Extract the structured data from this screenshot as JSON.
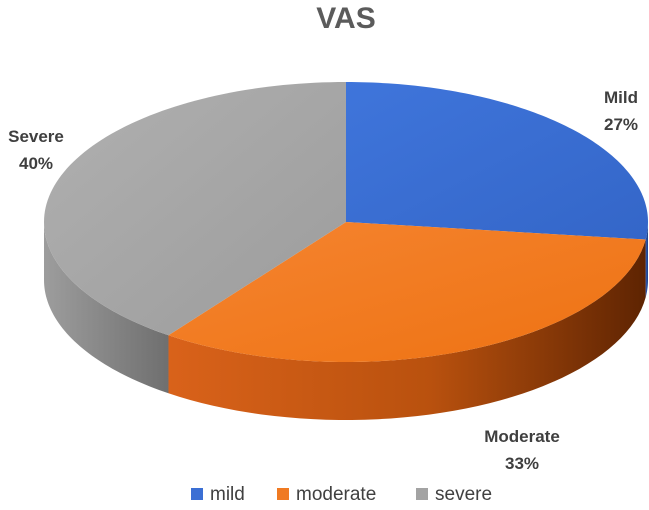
{
  "chart_data": {
    "type": "pie",
    "title": "VAS",
    "categories": [
      "mild",
      "moderate",
      "severe"
    ],
    "values": [
      27,
      33,
      40
    ],
    "unit": "%",
    "data_labels": [
      {
        "category": "Mild",
        "value": "27%"
      },
      {
        "category": "Moderate",
        "value": "33%"
      },
      {
        "category": "Severe",
        "value": "40%"
      }
    ],
    "colors": [
      "#3b6fd4",
      "#f07a22",
      "#a3a3a3"
    ],
    "legend": {
      "position": "bottom",
      "entries": [
        "mild",
        "moderate",
        "severe"
      ]
    },
    "style": "3d"
  }
}
